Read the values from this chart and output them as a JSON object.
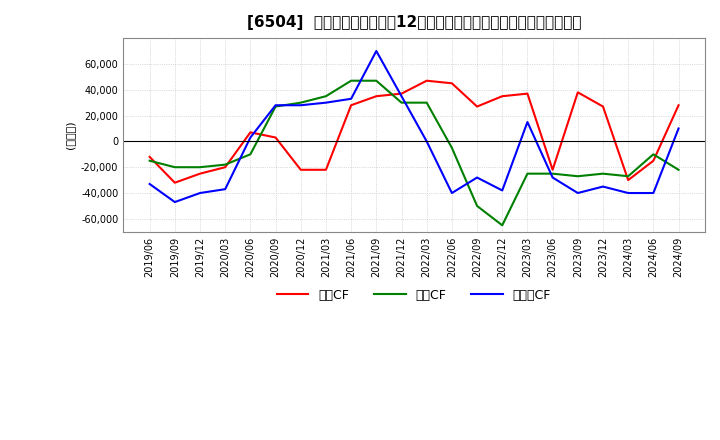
{
  "title": "[6504]  キャッシュフローの12か月移動合計の対前年同期増減額の推移",
  "ylabel": "(百万円)",
  "ylim": [
    -70000,
    80000
  ],
  "yticks": [
    -60000,
    -40000,
    -20000,
    0,
    20000,
    40000,
    60000
  ],
  "legend_labels": [
    "営業CF",
    "投資CF",
    "フリーCF"
  ],
  "legend_colors": [
    "#ff0000",
    "#008000",
    "#0000ff"
  ],
  "dates": [
    "2019/06",
    "2019/09",
    "2019/12",
    "2020/03",
    "2020/06",
    "2020/09",
    "2020/12",
    "2021/03",
    "2021/06",
    "2021/09",
    "2021/12",
    "2022/03",
    "2022/06",
    "2022/09",
    "2022/12",
    "2023/03",
    "2023/06",
    "2023/09",
    "2023/12",
    "2024/03",
    "2024/06",
    "2024/09"
  ],
  "operating_cf": [
    -12000,
    -32000,
    -25000,
    -20000,
    7000,
    3000,
    -22000,
    -22000,
    28000,
    35000,
    37000,
    47000,
    45000,
    27000,
    35000,
    37000,
    -22000,
    38000,
    27000,
    -30000,
    -15000,
    28000
  ],
  "investing_cf": [
    -15000,
    -20000,
    -20000,
    -18000,
    -10000,
    27000,
    30000,
    35000,
    47000,
    47000,
    30000,
    30000,
    -5000,
    -50000,
    -65000,
    -25000,
    -25000,
    -27000,
    -25000,
    -27000,
    -10000,
    -22000
  ],
  "free_cf": [
    -33000,
    -47000,
    -40000,
    -37000,
    3000,
    28000,
    28000,
    30000,
    33000,
    70000,
    35000,
    0,
    -40000,
    -28000,
    -38000,
    15000,
    -28000,
    -40000,
    -35000,
    -40000,
    -40000,
    10000
  ],
  "background_color": "#ffffff",
  "grid_color": "#aaaaaa",
  "title_fontsize": 11
}
